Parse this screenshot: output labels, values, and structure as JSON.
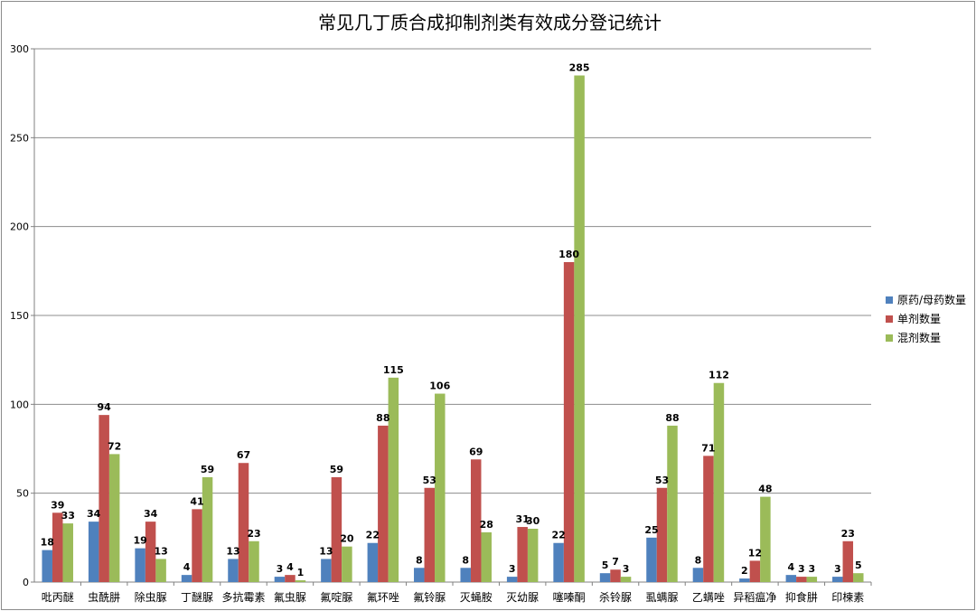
{
  "chart_data": {
    "type": "bar",
    "title": "常见几丁质合成抑制剂类有效成分登记统计",
    "xlabel": "",
    "ylabel": "",
    "ylim": [
      0,
      300
    ],
    "yticks": [
      0,
      50,
      100,
      150,
      200,
      250,
      300
    ],
    "grid": true,
    "legend_position": "right",
    "categories": [
      "吡丙醚",
      "虫酰肼",
      "除虫脲",
      "丁醚脲",
      "多抗霉素",
      "氟虫脲",
      "氟啶脲",
      "氟环唑",
      "氟铃脲",
      "灭蝇胺",
      "灭幼脲",
      "噻嗪酮",
      "杀铃脲",
      "虱螨脲",
      "乙螨唑",
      "异稻瘟净",
      "抑食肼",
      "印楝素"
    ],
    "series": [
      {
        "name": "原药/母药数量",
        "color": "#4f81bd",
        "values": [
          18,
          34,
          19,
          4,
          13,
          3,
          13,
          22,
          8,
          8,
          3,
          22,
          5,
          25,
          8,
          2,
          4,
          3
        ]
      },
      {
        "name": "单剂数量",
        "color": "#c0504d",
        "values": [
          39,
          94,
          34,
          41,
          67,
          4,
          59,
          88,
          53,
          69,
          31,
          180,
          7,
          53,
          71,
          12,
          3,
          23
        ]
      },
      {
        "name": "混剂数量",
        "color": "#9bbb59",
        "values": [
          33,
          72,
          13,
          59,
          23,
          1,
          20,
          115,
          106,
          28,
          30,
          285,
          3,
          88,
          112,
          48,
          3,
          5
        ]
      }
    ]
  }
}
